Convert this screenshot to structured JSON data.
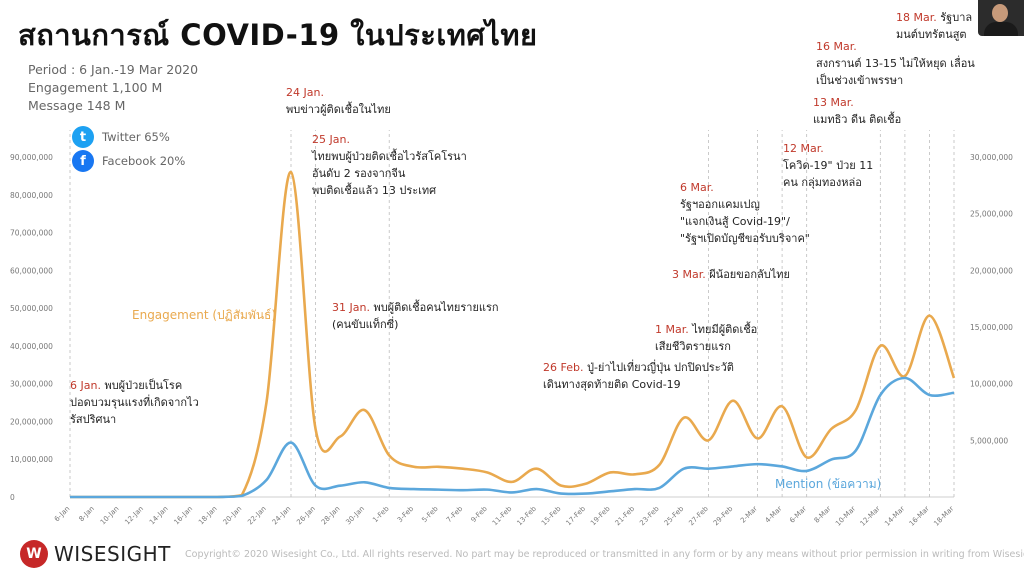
{
  "title": "สถานการณ์ COVID-19 ในประเทศไทย",
  "stats": [
    "Period : 6 Jan.-19 Mar 2020",
    "Engagement 1,100 M",
    "Message 148 M"
  ],
  "social": [
    {
      "label": "Twitter 65%",
      "icon": "twitter-icon",
      "color": "#1DA1F2",
      "glyph": "t"
    },
    {
      "label": "Facebook 20%",
      "icon": "facebook-icon",
      "color": "#1877F2",
      "glyph": "f"
    }
  ],
  "footer": {
    "brand": "WISESIGHT",
    "copyright": "Copyright©  2020  Wisesight Co., Ltd. All rights reserved. No part may be reproduced or transmitted in any form or by any means without prior permission in writing from Wisesight."
  },
  "chart_data": {
    "type": "line",
    "title": "สถานการณ์ COVID-19 ในประเทศไทย",
    "xlabel": "",
    "ylabel": "",
    "x": [
      "6-Jan",
      "8-Jan",
      "10-Jan",
      "12-Jan",
      "14-Jan",
      "16-Jan",
      "18-Jan",
      "20-Jan",
      "22-Jan",
      "24-Jan",
      "26-Jan",
      "28-Jan",
      "30-Jan",
      "1-Feb",
      "3-Feb",
      "5-Feb",
      "7-Feb",
      "9-Feb",
      "11-Feb",
      "13-Feb",
      "15-Feb",
      "17-Feb",
      "19-Feb",
      "21-Feb",
      "23-Feb",
      "25-Feb",
      "27-Feb",
      "29-Feb",
      "2-Mar",
      "4-Mar",
      "6-Mar",
      "8-Mar",
      "10-Mar",
      "12-Mar",
      "14-Mar",
      "16-Mar",
      "18-Mar"
    ],
    "colors": {
      "engagement": "#E9A94E",
      "mention": "#5BA7DC"
    },
    "series": [
      {
        "name": "Engagement (ปฏิสัมพันธ์)",
        "axis": "left",
        "values": [
          0,
          0,
          0,
          0,
          0,
          0,
          0,
          500000,
          25000000,
          86000000,
          18000000,
          16000000,
          23000000,
          11000000,
          8000000,
          8000000,
          7500000,
          6500000,
          4000000,
          7500000,
          3000000,
          3500000,
          6500000,
          6000000,
          8500000,
          21000000,
          15000000,
          25500000,
          15500000,
          24000000,
          10500000,
          18000000,
          23000000,
          40000000,
          32000000,
          48000000,
          31500000
        ]
      },
      {
        "name": "Mention (ข้อความ)",
        "axis": "right",
        "values": [
          0,
          0,
          0,
          0,
          0,
          0,
          0,
          100000,
          1500000,
          4800000,
          1000000,
          1000000,
          1300000,
          800000,
          700000,
          650000,
          600000,
          650000,
          400000,
          700000,
          300000,
          300000,
          500000,
          700000,
          800000,
          2500000,
          2500000,
          2700000,
          2900000,
          2700000,
          2300000,
          3300000,
          4100000,
          9000000,
          10500000,
          9000000,
          9200000
        ]
      }
    ],
    "y_left": {
      "ticks": [
        "0",
        "10,000,000",
        "20,000,000",
        "30,000,000",
        "40,000,000",
        "50,000,000",
        "60,000,000",
        "70,000,000",
        "80,000,000",
        "90,000,000"
      ],
      "ylim": [
        0,
        90000000
      ]
    },
    "y_right": {
      "ticks": [
        "5,000,000",
        "10,000,000",
        "15,000,000",
        "20,000,000",
        "25,000,000",
        "30,000,000"
      ],
      "ylim": [
        0,
        30000000
      ]
    },
    "series_labels": [
      {
        "text": "Engagement (ปฏิสัมพันธ์)",
        "series": 0
      },
      {
        "text": "Mention (ข้อความ)",
        "series": 1
      }
    ],
    "annotations": [
      {
        "date": "6 Jan.",
        "text": "พบผู้ป่วยเป็นโรค\nปอดบวมรุนแรงที่เกิดจากไว\nรัสปริศนา",
        "x": "6-Jan"
      },
      {
        "date": "24 Jan.",
        "text": "พบข่าวผู้ติดเชื้อในไทย",
        "x": "24-Jan"
      },
      {
        "date": "25 Jan.",
        "text": "ไทยพบผู้ป่วยติดเชื้อไวรัสโคโรนา\nอันดับ 2 รองจากจีน\nพบติดเชื้อแล้ว 13 ประเทศ",
        "x": "26-Jan"
      },
      {
        "date": "31 Jan.",
        "text": "พบผู้ติดเชื้อคนไทยรายแรก\n(คนขับแท็กซี่)",
        "x": "1-Feb"
      },
      {
        "date": "26 Feb.",
        "text": "ปู่-ย่าไปเที่ยวญี่ปุ่น ปกปิดประวัติ\nเดินทางสุดท้ายติด Covid-19",
        "x": "27-Feb"
      },
      {
        "date": "1 Mar.",
        "text": "ไทยมีผู้ติดเชื้อ\nเสียชีวิตรายแรก",
        "x": "2-Mar"
      },
      {
        "date": "3 Mar.",
        "text": "ผีน้อยขอกลับไทย",
        "x": "4-Mar"
      },
      {
        "date": "6 Mar.",
        "text": "รัฐฯออกแคมเปญ\n\"แจกเงินสู้ Covid-19\"/\n\"รัฐฯเปิดบัญชีขอรับบริจาค\"",
        "x": "6-Mar"
      },
      {
        "date": "12 Mar.",
        "text": "โควิด-19\" ป่วย 11\nคน กลุ่มทองหล่อ",
        "x": "12-Mar"
      },
      {
        "date": "13 Mar.",
        "text": "แมทธิว ดีน ติดเชื้อ",
        "x": "14-Mar"
      },
      {
        "date": "16 Mar.",
        "text": "สงกรานต์ 13-15 ไม่ให้หยุด เลื่อน\nเป็นช่วงเข้าพรรษา",
        "x": "16-Mar"
      },
      {
        "date": "18 Mar.",
        "text": "รัฐบาล\nมนต์บทรัตนสูต",
        "x": "18-Mar"
      }
    ]
  }
}
